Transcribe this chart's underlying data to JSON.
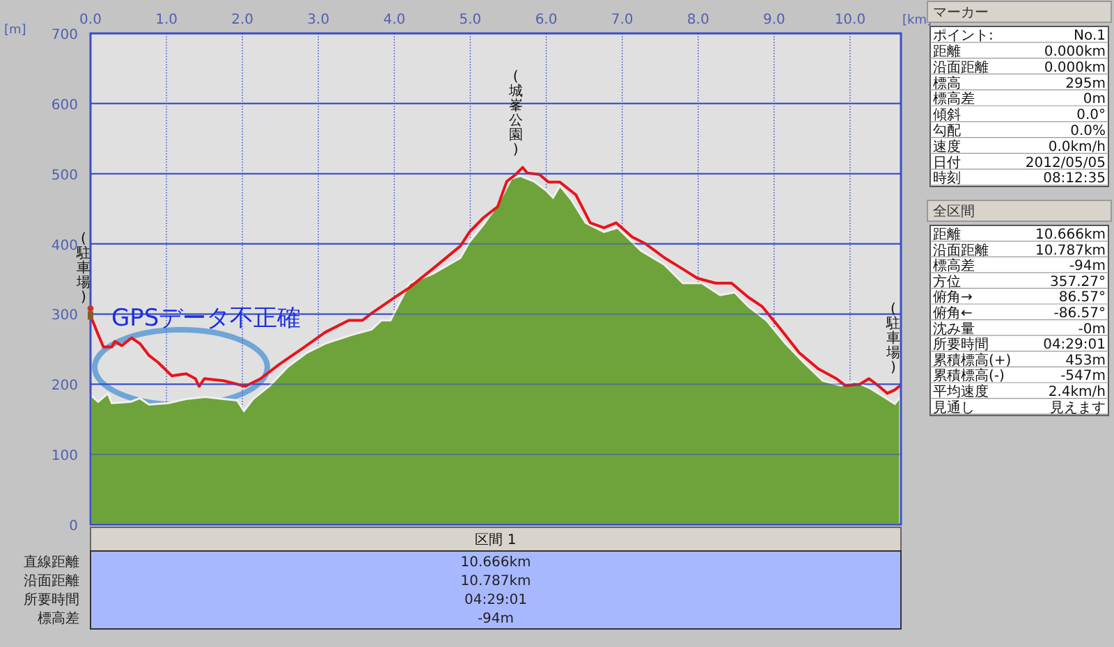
{
  "chart_data": [
    {
      "type": "area",
      "xlabel": "[km]",
      "ylabel": "[m]",
      "xlim": [
        0,
        10.67
      ],
      "ylim": [
        0,
        700
      ],
      "xticks": [
        {
          "value": 0,
          "label": "0.0"
        },
        {
          "value": 1,
          "label": "1.0"
        },
        {
          "value": 2,
          "label": "2.0"
        },
        {
          "value": 3,
          "label": "3.0"
        },
        {
          "value": 4,
          "label": "4.0"
        },
        {
          "value": 5,
          "label": "5.0"
        },
        {
          "value": 6,
          "label": "6.0"
        },
        {
          "value": 7,
          "label": "7.0"
        },
        {
          "value": 8,
          "label": "8.0"
        },
        {
          "value": 9,
          "label": "9.0"
        },
        {
          "value": 10,
          "label": "10.0"
        }
      ],
      "yticks": [
        0,
        100,
        200,
        300,
        400,
        500,
        600,
        700
      ],
      "grid": true,
      "series": [
        {
          "type": "area",
          "color": "#6ea23a",
          "x": [
            0,
            0.1,
            0.23,
            0.28,
            0.53,
            0.65,
            0.77,
            1.02,
            1.26,
            1.51,
            1.75,
            1.93,
            2.02,
            2.14,
            2.36,
            2.6,
            2.85,
            3.09,
            3.46,
            3.7,
            3.83,
            3.95,
            4.01,
            4.2,
            4.5,
            4.87,
            4.99,
            5.17,
            5.36,
            5.54,
            5.66,
            5.84,
            6.0,
            6.09,
            6.18,
            6.33,
            6.52,
            6.76,
            6.94,
            7.25,
            7.56,
            7.8,
            8.05,
            8.29,
            8.48,
            8.66,
            8.9,
            9.15,
            9.39,
            9.64,
            9.88,
            10.06,
            10.25,
            10.49,
            10.59,
            10.66
          ],
          "values": [
            185,
            175,
            187,
            173,
            175,
            180,
            171,
            173,
            179,
            182,
            179,
            177,
            162,
            179,
            198,
            225,
            245,
            258,
            271,
            278,
            291,
            291,
            304,
            344,
            357,
            380,
            403,
            427,
            456,
            493,
            497,
            489,
            476,
            466,
            483,
            463,
            430,
            417,
            423,
            390,
            370,
            344,
            344,
            327,
            331,
            311,
            291,
            258,
            231,
            205,
            198,
            204,
            195,
            179,
            172,
            182
          ]
        },
        {
          "type": "line",
          "color": "#e8141c",
          "x": [
            0,
            0.1,
            0.17,
            0.28,
            0.32,
            0.41,
            0.54,
            0.65,
            0.77,
            0.89,
            1.07,
            1.26,
            1.38,
            1.43,
            1.5,
            1.75,
            1.93,
            2.04,
            2.24,
            2.48,
            2.79,
            3.09,
            3.4,
            3.58,
            3.7,
            4.01,
            4.19,
            4.5,
            4.87,
            4.99,
            5.17,
            5.36,
            5.48,
            5.6,
            5.69,
            5.75,
            5.91,
            6.03,
            6.18,
            6.39,
            6.58,
            6.76,
            6.92,
            7.13,
            7.31,
            7.56,
            7.8,
            7.99,
            8.23,
            8.44,
            8.66,
            8.84,
            9.09,
            9.33,
            9.58,
            9.82,
            9.94,
            10.13,
            10.25,
            10.37,
            10.49,
            10.59,
            10.66
          ],
          "values": [
            298,
            271,
            253,
            253,
            261,
            255,
            266,
            258,
            241,
            231,
            212,
            215,
            208,
            197,
            208,
            205,
            200,
            197,
            208,
            228,
            251,
            274,
            291,
            291,
            301,
            324,
            337,
            364,
            397,
            417,
            437,
            453,
            489,
            499,
            509,
            501,
            499,
            488,
            488,
            470,
            430,
            423,
            430,
            410,
            400,
            380,
            364,
            351,
            344,
            344,
            324,
            311,
            278,
            245,
            222,
            208,
            198,
            200,
            208,
            198,
            187,
            192,
            198
          ]
        }
      ],
      "annotations": [
        "GPSデータ不正確",
        {
          "text": "(駐車場)",
          "x": 0,
          "y": 298
        },
        {
          "text": "(城峯公園)",
          "x": 5.69,
          "y": 509
        },
        {
          "text": "(駐車場)",
          "x": 10.66,
          "y": 198
        }
      ]
    },
    {
      "type": "other",
      "title": "マーカー",
      "annotations": [
        "ポイント:",
        "No.1",
        "距離",
        "0.000km",
        "沿面距離",
        "0.000km",
        "標高",
        "295m",
        "標高差",
        "0m",
        "傾斜",
        "0.0°",
        "勾配",
        "0.0%",
        "速度",
        "0.0km/h",
        "日付",
        "2012/05/05",
        "時刻",
        "08:12:35"
      ]
    },
    {
      "type": "other",
      "title": "全区間",
      "annotations": [
        "距離",
        "10.666km",
        "沿面距離",
        "10.787km",
        "標高差",
        "-94m",
        "方位",
        "357.27°",
        "俯角→",
        "86.57°",
        "俯角←",
        "-86.57°",
        "沈み量",
        "-0m",
        "所要時間",
        "04:29:01",
        "累積標高(+)",
        "453m",
        "累積標高(-)",
        "-547m",
        "平均速度",
        "2.4km/h",
        "見通し",
        "見えます"
      ]
    },
    {
      "type": "other",
      "title": "区間 1",
      "annotations": [
        "直線距離",
        "10.666km",
        "沿面距離",
        "10.787km",
        "所要時間",
        "04:29:01",
        "標高差",
        "-94m"
      ]
    }
  ]
}
